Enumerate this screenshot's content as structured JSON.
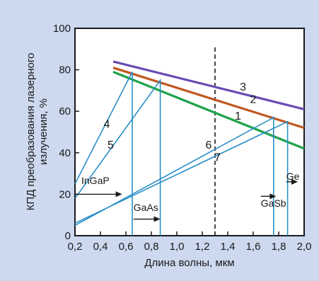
{
  "chart_data": {
    "type": "line",
    "xlabel": "Длина волны, мкм",
    "ylabel_line1": "КПД преобразования лазерного",
    "ylabel_line2": "излучения, %",
    "xlim": [
      0.2,
      2.0
    ],
    "ylim": [
      0,
      100
    ],
    "x_ticks": [
      "0,2",
      "0,4",
      "0,6",
      "0,8",
      "1,0",
      "1,2",
      "1,4",
      "1,6",
      "1,8",
      "2,0"
    ],
    "y_ticks": [
      "0",
      "20",
      "40",
      "60",
      "80",
      "100"
    ],
    "dashed_marker_x": 1.3,
    "series": [
      {
        "name": "1",
        "color": "#1fa34a",
        "x": [
          0.5,
          2.0
        ],
        "y": [
          79,
          42
        ]
      },
      {
        "name": "2",
        "color": "#c0571f",
        "x": [
          0.5,
          2.0
        ],
        "y": [
          81,
          52
        ]
      },
      {
        "name": "3",
        "color": "#6a4cb3",
        "x": [
          0.5,
          2.0
        ],
        "y": [
          84,
          61
        ]
      },
      {
        "name": "4",
        "color": "#2a8fc8",
        "x": [
          0.2,
          0.65,
          0.65
        ],
        "y": [
          25,
          79,
          0
        ]
      },
      {
        "name": "5",
        "color": "#2a8fc8",
        "x": [
          0.2,
          0.87,
          0.87
        ],
        "y": [
          18,
          75,
          0
        ]
      },
      {
        "name": "6",
        "color": "#2a8fc8",
        "x": [
          0.2,
          1.76,
          1.76
        ],
        "y": [
          5,
          57,
          0
        ]
      },
      {
        "name": "7",
        "color": "#2a8fc8",
        "x": [
          0.2,
          1.87,
          1.87
        ],
        "y": [
          6,
          55,
          0
        ]
      }
    ],
    "curve_labels": [
      {
        "text": "3",
        "x": 1.52,
        "y": 70
      },
      {
        "text": "2",
        "x": 1.6,
        "y": 64
      },
      {
        "text": "1",
        "x": 1.48,
        "y": 56
      },
      {
        "text": "4",
        "x": 0.45,
        "y": 52
      },
      {
        "text": "5",
        "x": 0.48,
        "y": 42
      },
      {
        "text": "6",
        "x": 1.25,
        "y": 42
      },
      {
        "text": "7",
        "x": 1.32,
        "y": 36
      }
    ],
    "materials": [
      {
        "text": "InGaP",
        "x": 0.25,
        "y": 25,
        "ax1": 0.2,
        "ax2": 0.57,
        "ay": 20
      },
      {
        "text": "GaAs",
        "x": 0.66,
        "y": 12,
        "ax1": 0.66,
        "ax2": 0.87,
        "ay": 8
      },
      {
        "text": "Ge",
        "x": 1.86,
        "y": 27,
        "ax1": 1.86,
        "ax2": 1.95,
        "ay": 26
      },
      {
        "text": "GaSb",
        "x": 1.66,
        "y": 14,
        "ax1": 1.66,
        "ax2": 1.78,
        "ay": 19
      }
    ]
  }
}
